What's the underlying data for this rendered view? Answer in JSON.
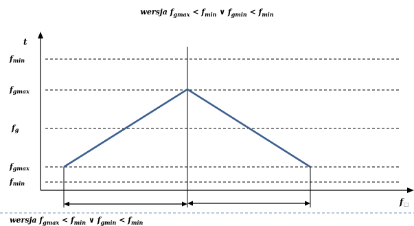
{
  "title": {
    "parts": [
      {
        "t": "wersja "
      },
      {
        "t": "f",
        "sub": "gmax"
      },
      {
        "t": " < "
      },
      {
        "t": "f",
        "sub": "min"
      },
      {
        "t": " ∨ "
      },
      {
        "t": "f",
        "sub": "gmin"
      },
      {
        "t": " < "
      },
      {
        "t": "f",
        "sub": "min"
      }
    ]
  },
  "bottom_caption": {
    "parts": [
      {
        "t": "wersja "
      },
      {
        "t": "f",
        "sub": "gmax"
      },
      {
        "t": " < "
      },
      {
        "t": "f",
        "sub": "min"
      },
      {
        "t": " ∨ "
      },
      {
        "t": "f",
        "sub": "gmin"
      },
      {
        "t": " < "
      },
      {
        "t": "f",
        "sub": "min"
      }
    ]
  },
  "axes": {
    "y_label": "t",
    "x_label": "f",
    "x_label_glyph": "□"
  },
  "levels": [
    {
      "id": "fmin-top",
      "main": "f",
      "sub": "min"
    },
    {
      "id": "fgmax-upper",
      "main": "f",
      "sub": "gmax"
    },
    {
      "id": "fg",
      "main": "f",
      "sub": "g"
    },
    {
      "id": "fgmax-lower",
      "main": "f",
      "sub": "gmax"
    },
    {
      "id": "fmin-bottom",
      "main": "f",
      "sub": "min"
    }
  ],
  "colors": {
    "profile_line": "#3d5f8f",
    "dashed_line": "#000000",
    "separator_dashed": "#8aa6c8"
  }
}
